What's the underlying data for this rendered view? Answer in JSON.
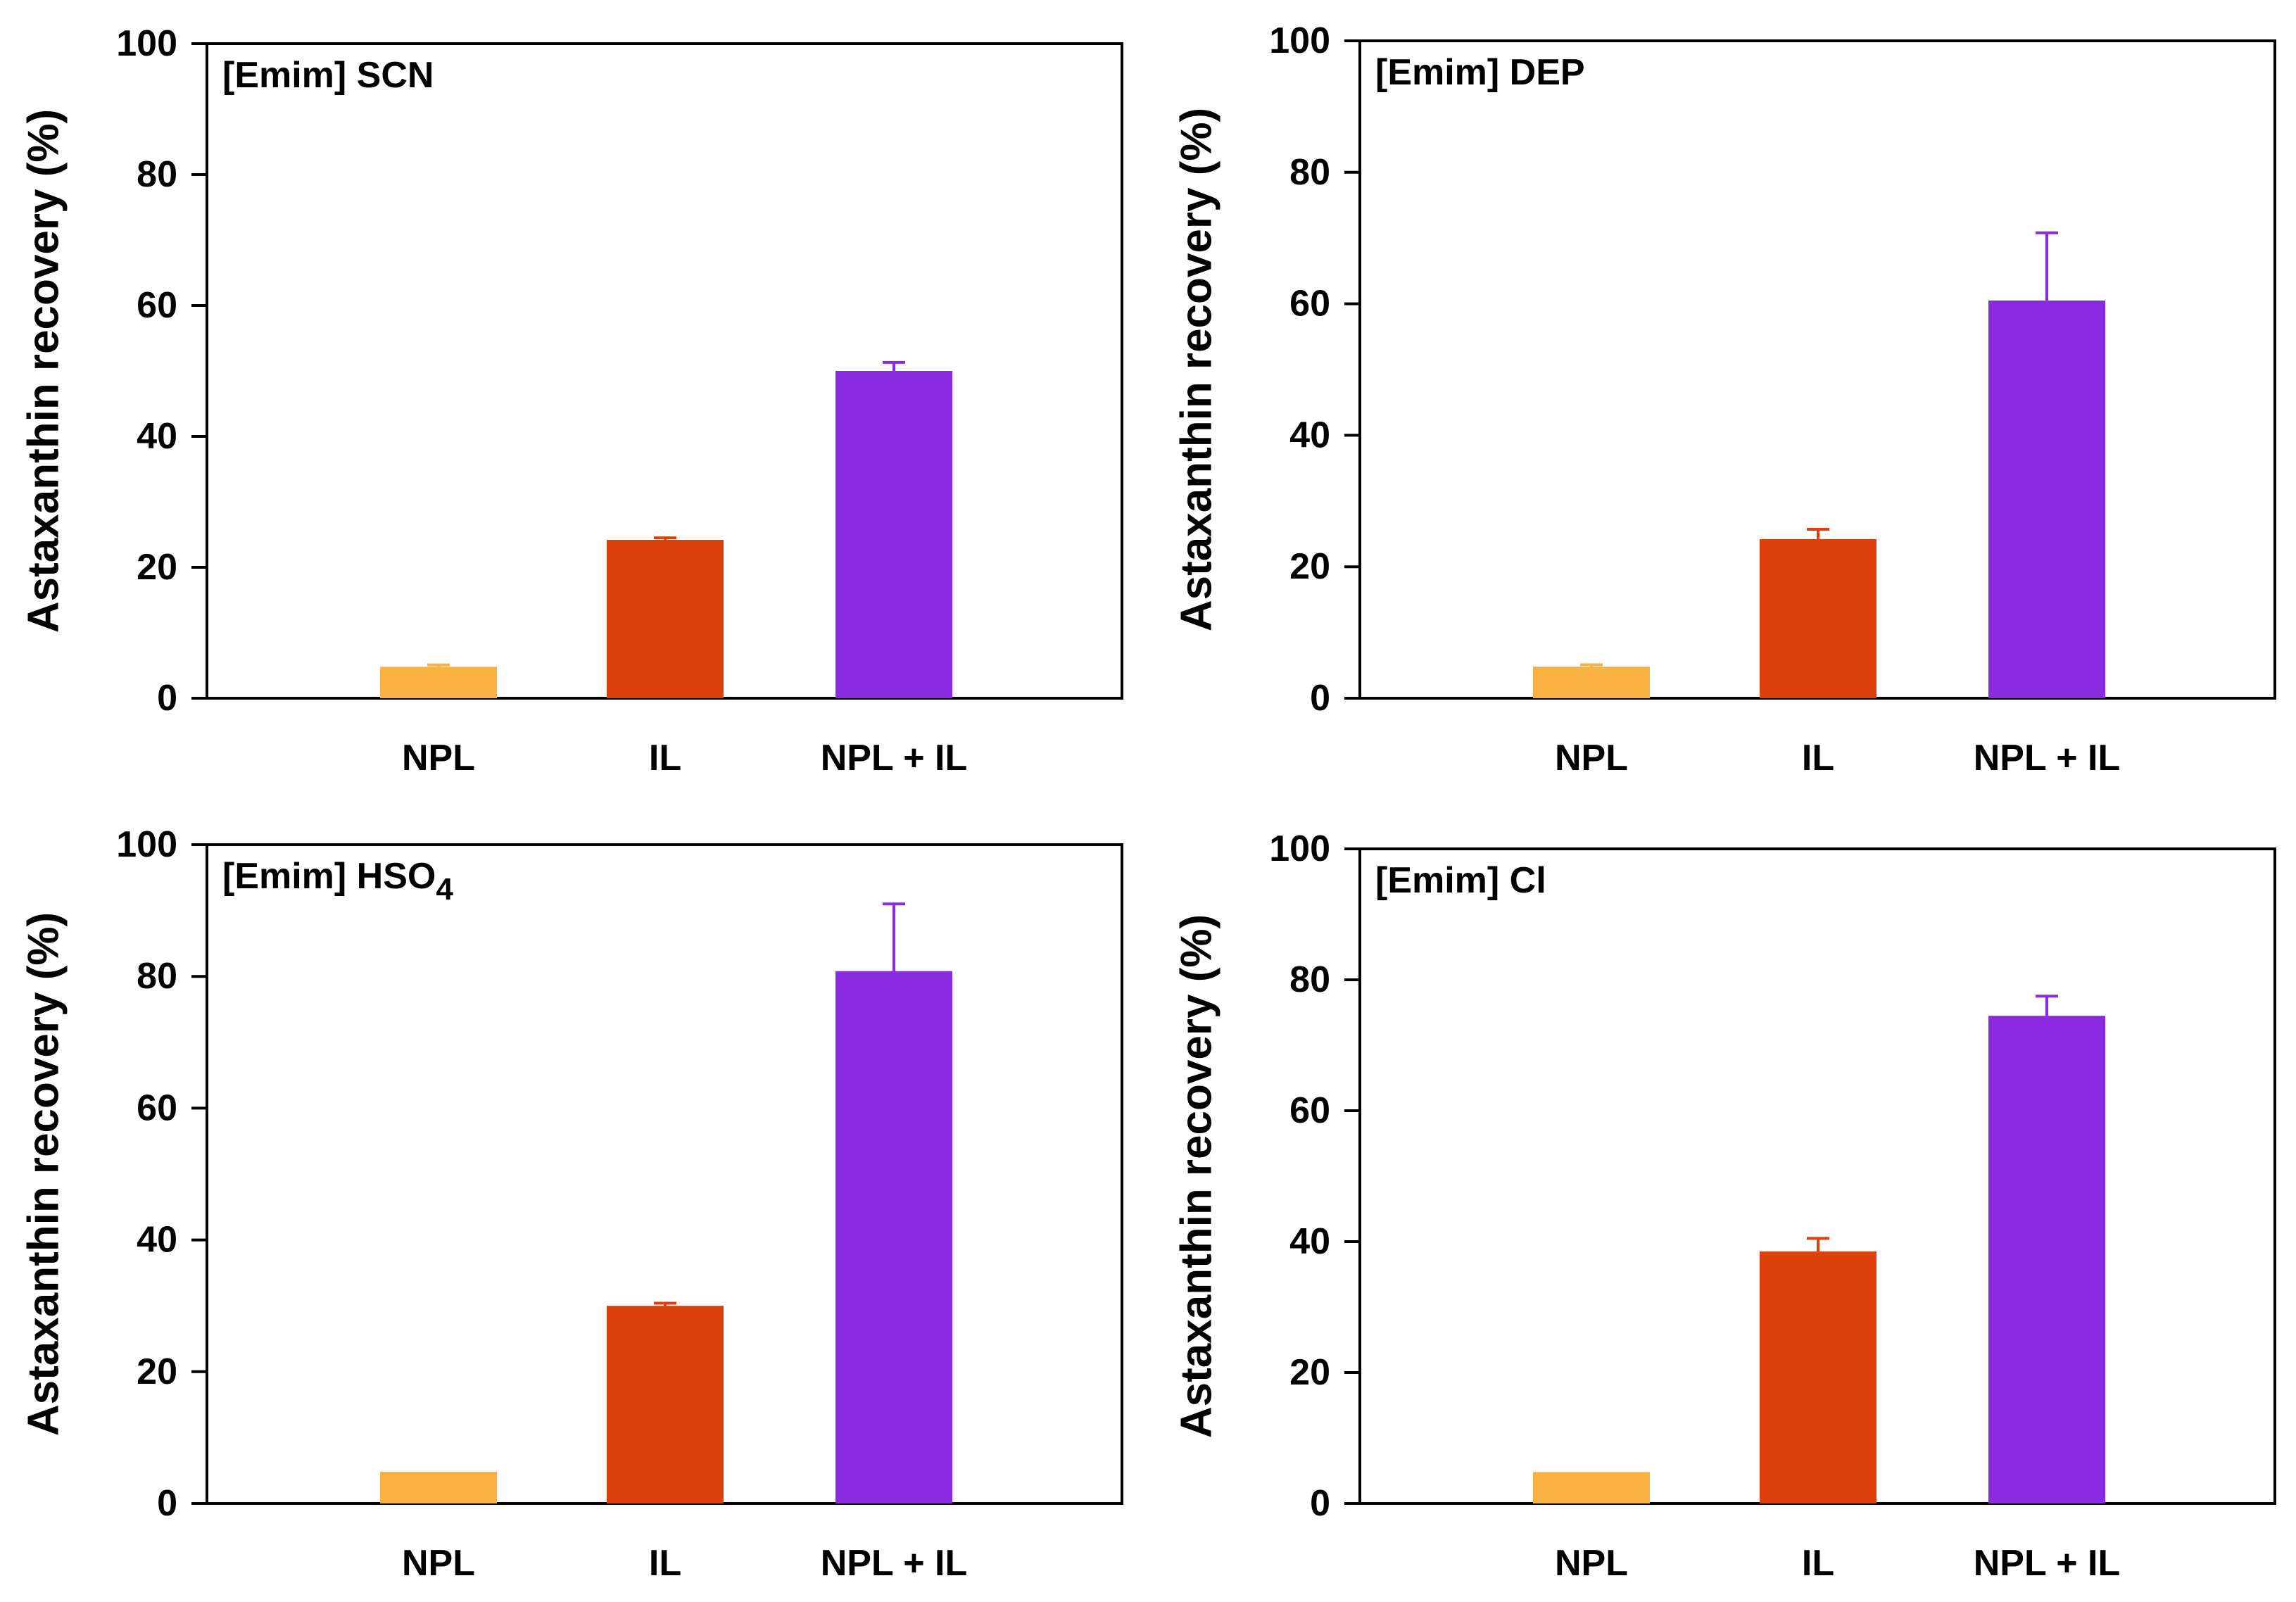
{
  "chart_data": [
    {
      "type": "bar",
      "title": "[Emim] SCN",
      "title_main": "[Emim] SCN",
      "title_sub": "",
      "ylabel": "Astaxanthin recovery (%)",
      "xlabel": "",
      "ylim": [
        0,
        100
      ],
      "yticks": [
        0,
        20,
        40,
        60,
        80,
        100
      ],
      "categories": [
        "NPL",
        "IL",
        "NPL + IL"
      ],
      "values": [
        4.8,
        24.2,
        50.0
      ],
      "errors": [
        0.3,
        0.3,
        1.3
      ],
      "colors": [
        "#F9B13F",
        "#DE400C",
        "#8A2BE2"
      ]
    },
    {
      "type": "bar",
      "title": "[Emim] DEP",
      "title_main": "[Emim] DEP",
      "title_sub": "",
      "ylabel": "Astaxanthin recovery (%)",
      "xlabel": "",
      "ylim": [
        0,
        100
      ],
      "yticks": [
        0,
        20,
        40,
        60,
        80,
        100
      ],
      "categories": [
        "NPL",
        "IL",
        "NPL + IL"
      ],
      "values": [
        4.8,
        24.2,
        60.5
      ],
      "errors": [
        0.3,
        1.5,
        10.3
      ],
      "colors": [
        "#F9B13F",
        "#DE400C",
        "#8A2BE2"
      ]
    },
    {
      "type": "bar",
      "title": "[Emim] HSO4",
      "title_main": "[Emim] HSO",
      "title_sub": "4",
      "ylabel": "Astaxanthin recovery (%)",
      "xlabel": "",
      "ylim": [
        0,
        100
      ],
      "yticks": [
        0,
        20,
        40,
        60,
        80,
        100
      ],
      "categories": [
        "NPL",
        "IL",
        "NPL + IL"
      ],
      "values": [
        4.8,
        30.0,
        80.8
      ],
      "errors": [
        0.0,
        0.4,
        10.2
      ],
      "colors": [
        "#F9B13F",
        "#DE400C",
        "#8A2BE2"
      ]
    },
    {
      "type": "bar",
      "title": "[Emim] Cl",
      "title_main": "[Emim] Cl",
      "title_sub": "",
      "ylabel": "Astaxanthin recovery (%)",
      "xlabel": "",
      "ylim": [
        0,
        100
      ],
      "yticks": [
        0,
        20,
        40,
        60,
        80,
        100
      ],
      "categories": [
        "NPL",
        "IL",
        "NPL + IL"
      ],
      "values": [
        4.8,
        38.5,
        74.5
      ],
      "errors": [
        0.0,
        2.0,
        3.0
      ],
      "colors": [
        "#F9B13F",
        "#DE400C",
        "#8A2BE2"
      ]
    }
  ]
}
